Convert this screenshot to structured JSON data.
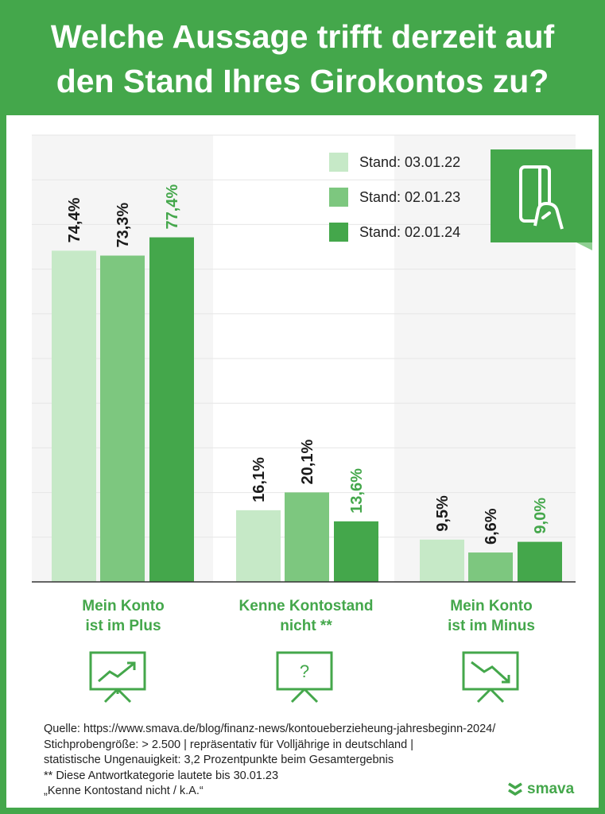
{
  "header": {
    "title_line1": "Welche Aussage trifft derzeit auf",
    "title_line2": "den Stand Ihres Girokontos zu?"
  },
  "chart_data": {
    "type": "bar",
    "title": "Welche Aussage trifft derzeit auf den Stand Ihres Girokontos zu?",
    "categories": [
      [
        "Mein Konto",
        "ist im Plus"
      ],
      [
        "Kenne Kontostand",
        "nicht **"
      ],
      [
        "Mein Konto",
        "ist im Minus"
      ]
    ],
    "series": [
      {
        "name": "Stand: 03.01.22",
        "color": "#c6e9c7",
        "values": [
          74.4,
          16.1,
          9.5
        ],
        "labels": [
          "74,4%",
          "16,1%",
          "9,5%"
        ]
      },
      {
        "name": "Stand: 02.01.23",
        "color": "#7dc77f",
        "values": [
          73.3,
          20.1,
          6.6
        ],
        "labels": [
          "73,3%",
          "20,1%",
          "6,6%"
        ]
      },
      {
        "name": "Stand: 02.01.24",
        "color": "#44a74b",
        "values": [
          77.4,
          13.6,
          9.0
        ],
        "labels": [
          "77,4%",
          "13,6%",
          "9,0%"
        ]
      }
    ],
    "ylim": [
      0,
      100
    ],
    "grid": true,
    "legend": "top-right",
    "value_label_colors": [
      "#1a1a1a",
      "#1a1a1a",
      "#44a74b"
    ]
  },
  "legend": {
    "items": [
      "Stand: 03.01.22",
      "Stand: 02.01.23",
      "Stand: 02.01.24"
    ]
  },
  "icons": {
    "card": "hand-holding-card-icon",
    "categories": [
      "chart-up-presentation-icon",
      "question-presentation-icon",
      "chart-down-presentation-icon"
    ],
    "question_mark": "?"
  },
  "colors": {
    "brand_green": "#44a74b",
    "light_green": "#c6e9c7",
    "mid_green": "#7dc77f",
    "panel_gray": "#f5f5f5"
  },
  "footnote": {
    "lines": [
      "Quelle: https://www.smava.de/blog/finanz-news/kontoueberzieheung-jahresbeginn-2024/",
      "Stichprobengröße: > 2.500 | repräsentativ für Volljährige in deutschland |",
      "statistische Ungenauigkeit: 3,2 Prozentpunkte beim Gesamtergebnis",
      "** Diese Antwortkategorie lautete bis 30.01.23",
      "„Kenne Kontostand nicht / k.A.“"
    ]
  },
  "brand": {
    "name": "smava"
  }
}
